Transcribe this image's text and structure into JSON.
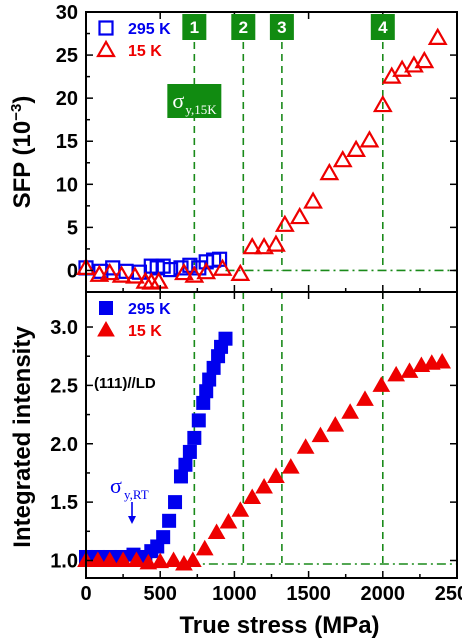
{
  "chart_data": [
    {
      "panel": "top",
      "type": "scatter",
      "ylabel": "SFP (10",
      "ylabel_sup": "−3",
      "ylabel_close": ")",
      "xlim": [
        0,
        2500
      ],
      "ylim": [
        -2.5,
        30
      ],
      "yticks": [
        0,
        5,
        10,
        15,
        20,
        25,
        30
      ],
      "legend_position": "top-left",
      "series": [
        {
          "name": "295 K",
          "color": "#0000ee",
          "marker": "square-open",
          "x": [
            0,
            100,
            180,
            270,
            360,
            440,
            480,
            520,
            570,
            640,
            700,
            760,
            810,
            860,
            900
          ],
          "y": [
            0.3,
            -0.1,
            0.3,
            -0.1,
            -0.2,
            0.5,
            0.3,
            0.5,
            0.1,
            0.3,
            0.6,
            0.3,
            1.0,
            1.2,
            1.3
          ]
        },
        {
          "name": "15 K",
          "color": "#ee0000",
          "marker": "triangle-open",
          "x": [
            0,
            90,
            160,
            240,
            330,
            400,
            440,
            490,
            660,
            730,
            810,
            920,
            1040,
            1120,
            1200,
            1280,
            1340,
            1440,
            1530,
            1640,
            1730,
            1820,
            1910,
            2000,
            2060,
            2130,
            2210,
            2280,
            2370
          ],
          "y": [
            0.3,
            -0.5,
            -0.3,
            -0.6,
            -0.7,
            -1.3,
            -1.4,
            -1.3,
            -0.3,
            -0.6,
            -0.2,
            0.2,
            -0.4,
            2.7,
            2.7,
            3.0,
            5.3,
            6.2,
            8.0,
            11.3,
            12.8,
            14.0,
            15.1,
            19.2,
            22.5,
            23.3,
            23.8,
            24.3,
            27.0
          ]
        }
      ],
      "vlines": [
        {
          "x": 730,
          "label": "1"
        },
        {
          "x": 1060,
          "label": "2"
        },
        {
          "x": 1320,
          "label": "3"
        },
        {
          "x": 2000,
          "label": "4"
        }
      ],
      "hline_y": 0,
      "sigma_label": "σ",
      "sigma_sub": "y,15K"
    },
    {
      "panel": "bottom",
      "type": "scatter",
      "ylabel": "Integrated intensity",
      "xlabel": "True stress (MPa)",
      "xlim": [
        0,
        2500
      ],
      "ylim": [
        0.85,
        3.3
      ],
      "xticks": [
        0,
        500,
        1000,
        1500,
        2000,
        2500
      ],
      "yticks": [
        1.0,
        1.5,
        2.0,
        2.5,
        3.0
      ],
      "legend_position": "top-left",
      "annotation": "(111)//LD",
      "series": [
        {
          "name": "295 K",
          "color": "#0000ee",
          "marker": "square-filled",
          "x": [
            0,
            80,
            160,
            240,
            320,
            360,
            400,
            440,
            480,
            520,
            560,
            600,
            640,
            670,
            700,
            730,
            760,
            790,
            810,
            830,
            860,
            890,
            910,
            940
          ],
          "y": [
            1.03,
            1.03,
            1.03,
            1.03,
            1.05,
            1.03,
            1.03,
            1.08,
            1.12,
            1.2,
            1.34,
            1.5,
            1.72,
            1.82,
            1.93,
            2.05,
            2.2,
            2.35,
            2.45,
            2.55,
            2.65,
            2.75,
            2.83,
            2.9
          ]
        },
        {
          "name": "15 K",
          "color": "#ee0000",
          "marker": "triangle-filled",
          "x": [
            0,
            80,
            160,
            250,
            340,
            420,
            500,
            590,
            660,
            720,
            800,
            880,
            960,
            1040,
            1120,
            1200,
            1280,
            1380,
            1480,
            1580,
            1680,
            1780,
            1880,
            1990,
            2090,
            2180,
            2260,
            2330,
            2400
          ],
          "y": [
            1.0,
            1.0,
            1.0,
            1.0,
            1.0,
            0.98,
            0.99,
            1.0,
            0.97,
            1.0,
            1.1,
            1.24,
            1.33,
            1.43,
            1.54,
            1.63,
            1.72,
            1.8,
            1.97,
            2.07,
            2.16,
            2.27,
            2.38,
            2.5,
            2.59,
            2.62,
            2.67,
            2.69,
            2.7
          ]
        }
      ],
      "vlines": [
        {
          "x": 730
        },
        {
          "x": 1060
        },
        {
          "x": 1320
        },
        {
          "x": 2000
        }
      ],
      "hline_y": 0.97,
      "sigma_label": "σ",
      "sigma_sub": "y,RT",
      "sigma_x": 310
    }
  ],
  "colors": {
    "box_green": "#118b11",
    "guide_green": "#1a8a1a",
    "blue": "#0000ee",
    "red": "#ee0000"
  }
}
